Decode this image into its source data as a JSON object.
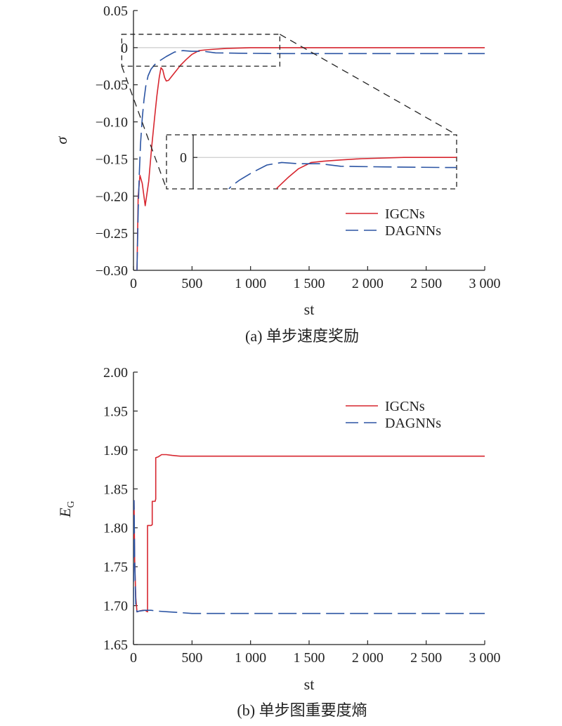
{
  "colors": {
    "igcn": "#d7262f",
    "dagnn": "#2b54a3",
    "axis": "#222222",
    "zeroline": "#cccccc"
  },
  "chart_data": [
    {
      "type": "line",
      "caption": "(a) 单步速度奖励",
      "xlabel": "st",
      "ylabel": "σ",
      "xlim": [
        0,
        3000
      ],
      "ylim": [
        -0.3,
        0.05
      ],
      "x_ticks": [
        0,
        500,
        1000,
        1500,
        2000,
        2500,
        3000
      ],
      "x_tick_labels": [
        "0",
        "500",
        "1 000",
        "1 500",
        "2 000",
        "2 500",
        "3 000"
      ],
      "y_ticks": [
        0.05,
        0,
        -0.05,
        -0.1,
        -0.15,
        -0.2,
        -0.25,
        -0.3
      ],
      "y_tick_labels": [
        "0.05",
        "0",
        "−0.05",
        "−0.10",
        "−0.15",
        "−0.20",
        "−0.25",
        "−0.30"
      ],
      "legend": {
        "position": "lower-right",
        "entries": [
          "IGCNs",
          "DAGNNs"
        ]
      },
      "zero_line": true,
      "inset": {
        "zoom_region": {
          "x": [
            -100,
            1250
          ],
          "y": [
            -0.025,
            0.018
          ]
        },
        "tick_label": "0"
      },
      "series": [
        {
          "name": "IGCNs",
          "style": "solid",
          "x": [
            30,
            40,
            55,
            75,
            100,
            130,
            155,
            180,
            200,
            220,
            235,
            250,
            265,
            280,
            300,
            330,
            360,
            400,
            450,
            500,
            560,
            620,
            700,
            800,
            1000,
            1200,
            1500,
            2000,
            2500,
            3000
          ],
          "y": [
            -0.3,
            -0.2,
            -0.172,
            -0.183,
            -0.213,
            -0.18,
            -0.135,
            -0.095,
            -0.065,
            -0.04,
            -0.027,
            -0.03,
            -0.04,
            -0.045,
            -0.044,
            -0.038,
            -0.032,
            -0.024,
            -0.016,
            -0.009,
            -0.004,
            -0.003,
            -0.002,
            -0.001,
            0.0,
            0.0,
            0.0,
            0.0,
            0.0,
            0.0
          ]
        },
        {
          "name": "DAGNNs",
          "style": "dashed",
          "x": [
            30,
            40,
            50,
            60,
            75,
            90,
            105,
            125,
            150,
            180,
            220,
            280,
            350,
            420,
            500,
            600,
            700,
            900,
            1200,
            1500,
            2000,
            2500,
            3000
          ],
          "y": [
            -0.3,
            -0.22,
            -0.17,
            -0.13,
            -0.095,
            -0.07,
            -0.052,
            -0.038,
            -0.029,
            -0.023,
            -0.018,
            -0.012,
            -0.006,
            -0.004,
            -0.005,
            -0.005,
            -0.007,
            -0.0075,
            -0.008,
            -0.008,
            -0.008,
            -0.008,
            -0.008
          ]
        }
      ]
    },
    {
      "type": "line",
      "caption": "(b) 单步图重要度熵",
      "xlabel": "st",
      "ylabel": "E_G",
      "ylabel_main": "E",
      "ylabel_sub": "G",
      "xlim": [
        0,
        3000
      ],
      "ylim": [
        1.65,
        2.0
      ],
      "x_ticks": [
        0,
        500,
        1000,
        1500,
        2000,
        2500,
        3000
      ],
      "x_tick_labels": [
        "0",
        "500",
        "1 000",
        "1 500",
        "2 000",
        "2 500",
        "3 000"
      ],
      "y_ticks": [
        2.0,
        1.95,
        1.9,
        1.85,
        1.8,
        1.75,
        1.7,
        1.65
      ],
      "y_tick_labels": [
        "2.00",
        "1.95",
        "1.90",
        "1.85",
        "1.80",
        "1.75",
        "1.70",
        "1.65"
      ],
      "legend": {
        "position": "top-right",
        "entries": [
          "IGCNs",
          "DAGNNs"
        ]
      },
      "series": [
        {
          "name": "IGCNs",
          "style": "solid",
          "x": [
            0,
            5,
            10,
            20,
            30,
            50,
            80,
            100,
            120,
            120,
            150,
            160,
            160,
            185,
            190,
            190,
            210,
            240,
            280,
            330,
            400,
            3000
          ],
          "y": [
            1.765,
            1.835,
            1.76,
            1.71,
            1.692,
            1.693,
            1.694,
            1.694,
            1.692,
            1.803,
            1.803,
            1.804,
            1.834,
            1.834,
            1.837,
            1.89,
            1.891,
            1.894,
            1.894,
            1.893,
            1.892,
            1.892
          ]
        },
        {
          "name": "DAGNNs",
          "style": "dashed",
          "x": [
            0,
            5,
            10,
            20,
            30,
            50,
            100,
            150,
            200,
            300,
            400,
            500,
            700,
            1000,
            2000,
            3000
          ],
          "y": [
            1.7,
            1.835,
            1.76,
            1.7,
            1.692,
            1.693,
            1.694,
            1.694,
            1.693,
            1.692,
            1.691,
            1.69,
            1.69,
            1.69,
            1.69,
            1.69
          ]
        }
      ]
    }
  ]
}
